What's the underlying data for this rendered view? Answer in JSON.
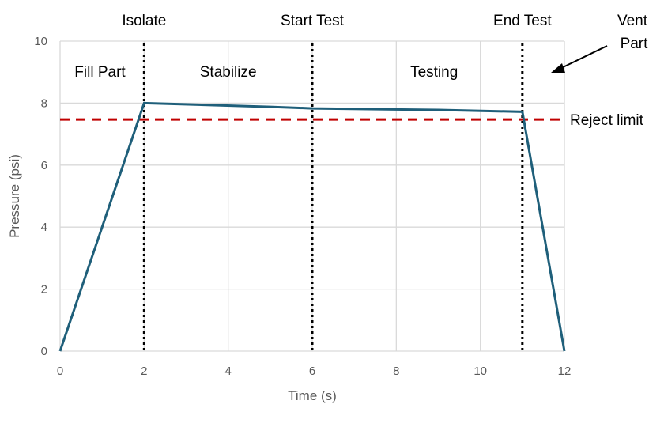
{
  "chart_data": {
    "type": "line",
    "title": "",
    "xlabel": "Time (s)",
    "ylabel": "Pressure (psi)",
    "xlim": [
      0,
      12
    ],
    "ylim": [
      0,
      10
    ],
    "xticks": [
      0,
      2,
      4,
      6,
      8,
      10,
      12
    ],
    "yticks": [
      0,
      2,
      4,
      6,
      8,
      10
    ],
    "grid": true,
    "series": [
      {
        "name": "Pressure",
        "color": "#1f5f7a",
        "x": [
          0,
          2,
          5,
          6,
          9,
          11,
          12
        ],
        "y": [
          0,
          8.0,
          7.88,
          7.83,
          7.78,
          7.72,
          0
        ]
      }
    ],
    "reject_limit": {
      "label": "Reject limit",
      "value": 7.47,
      "color": "#c00000"
    },
    "phase_markers": [
      {
        "x": 2,
        "label": "Isolate"
      },
      {
        "x": 6,
        "label": "Start Test"
      },
      {
        "x": 11,
        "label": "End Test"
      }
    ],
    "phase_labels": [
      {
        "x": 0.95,
        "label": "Fill Part"
      },
      {
        "x": 4,
        "label": "Stabilize"
      },
      {
        "x": 8.9,
        "label": "Testing"
      }
    ],
    "vent_label": [
      "Vent",
      "Part"
    ]
  }
}
